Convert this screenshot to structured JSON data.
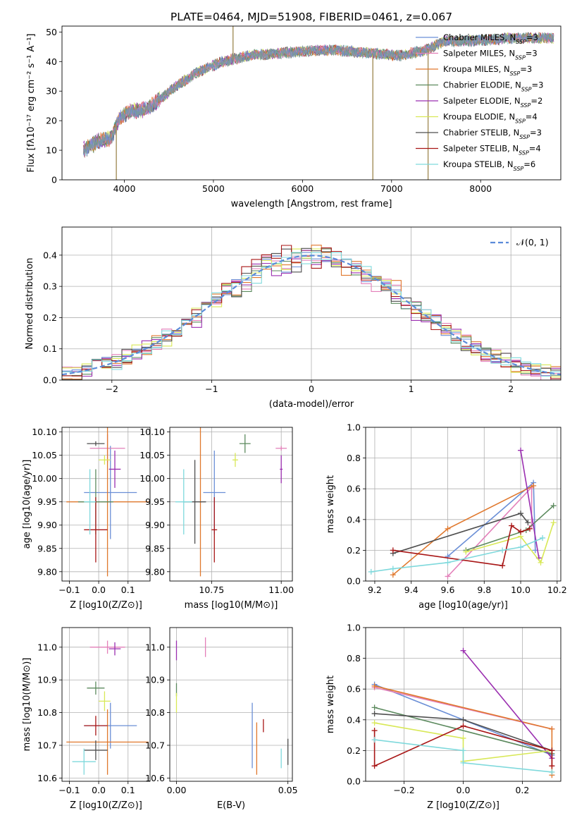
{
  "figure_title": "PLATE=0464, MJD=51908, FIBERID=0461, z=0.067",
  "palette": [
    "#6b8fd6",
    "#e37fb9",
    "#e0782d",
    "#5c8a5e",
    "#9b2fb0",
    "#d8e856",
    "#4f4f4f",
    "#a81616",
    "#7fd9dc"
  ],
  "model_labels": [
    {
      "base": "Chabrier MILES, N",
      "n": "=3"
    },
    {
      "base": "Salpeter MILES, N",
      "n": "=3"
    },
    {
      "base": "Kroupa MILES, N",
      "n": "=3"
    },
    {
      "base": "Chabrier ELODIE, N",
      "n": "=3"
    },
    {
      "base": "Salpeter ELODIE, N",
      "n": "=2"
    },
    {
      "base": "Kroupa ELODIE, N",
      "n": "=4"
    },
    {
      "base": "Chabrier STELIB, N",
      "n": "=3"
    },
    {
      "base": "Salpeter STELIB, N",
      "n": "=4"
    },
    {
      "base": "Kroupa STELIB, N",
      "n": "=6"
    }
  ],
  "ssp_subscript": "SSP",
  "chart_data": [
    {
      "id": "spectrum",
      "type": "line",
      "xlabel": "wavelength [Angstrom, rest frame]",
      "ylabel": "Flux [fλ10⁻¹⁷ erg cm⁻² s⁻¹ A⁻¹]",
      "xlim": [
        3300,
        8900
      ],
      "ylim": [
        0,
        52
      ],
      "xticks": [
        4000,
        5000,
        6000,
        7000,
        8000
      ],
      "yticks": [
        0,
        10,
        20,
        30,
        40,
        50
      ],
      "grid": false,
      "legend": "right",
      "continuum": [
        [
          3540,
          10
        ],
        [
          3700,
          13
        ],
        [
          3850,
          14
        ],
        [
          3950,
          21
        ],
        [
          4050,
          23
        ],
        [
          4250,
          24
        ],
        [
          4400,
          27
        ],
        [
          4550,
          31
        ],
        [
          4800,
          36
        ],
        [
          5100,
          40
        ],
        [
          5400,
          42
        ],
        [
          5800,
          43
        ],
        [
          6300,
          44
        ],
        [
          6700,
          43
        ],
        [
          7100,
          42
        ],
        [
          7400,
          44
        ],
        [
          7600,
          47
        ],
        [
          7900,
          47
        ],
        [
          8400,
          48
        ],
        [
          8820,
          48
        ]
      ],
      "spikes": [
        {
          "x": 3910,
          "y": 0
        },
        {
          "x": 5220,
          "y": 52
        },
        {
          "x": 6790,
          "y": 0
        },
        {
          "x": 7410,
          "y": 0
        }
      ]
    },
    {
      "id": "residuals",
      "type": "step",
      "xlabel": "(data-model)/error",
      "ylabel": "Normed distribution",
      "xlim": [
        -2.5,
        2.5
      ],
      "ylim": [
        0,
        0.49
      ],
      "xticks": [
        -2,
        -1,
        0,
        1,
        2
      ],
      "yticks": [
        0.0,
        0.1,
        0.2,
        0.3,
        0.4
      ],
      "grid": true,
      "legend": "top-right",
      "gaussian_label": "𝒩(0, 1)",
      "bin_width": 0.1
    },
    {
      "id": "age-vs-Z",
      "type": "scatter-errorbar",
      "xlabel": "Z [log10(Z/Z⊙)]",
      "ylabel": "age  [log10(age/yr)]",
      "xlim": [
        -0.125,
        0.175
      ],
      "ylim": [
        9.78,
        10.11
      ],
      "xticks": [
        -0.1,
        0.0,
        0.1
      ],
      "yticks": [
        9.8,
        9.85,
        9.9,
        9.95,
        10.0,
        10.05,
        10.1
      ],
      "grid": true,
      "points": [
        {
          "x": 0.04,
          "y": 9.97,
          "xerr": 0.09,
          "yerr": 0.1
        },
        {
          "x": 0.03,
          "y": 10.065,
          "xerr": 0.06,
          "yerr": 0.03
        },
        {
          "x": 0.03,
          "y": 9.95,
          "xerr": 0.14,
          "yerr": 0.16
        },
        {
          "x": -0.01,
          "y": 9.95,
          "xerr": 0.06,
          "yerr": 0.07
        },
        {
          "x": 0.055,
          "y": 10.02,
          "xerr": 0.02,
          "yerr": 0.04
        },
        {
          "x": 0.02,
          "y": 10.04,
          "xerr": 0.02,
          "yerr": 0.01
        },
        {
          "x": -0.01,
          "y": 10.075,
          "xerr": 0.03,
          "yerr": 0.005
        },
        {
          "x": -0.01,
          "y": 9.89,
          "xerr": 0.04,
          "yerr": 0.07
        },
        {
          "x": -0.03,
          "y": 9.95,
          "xerr": 0.02,
          "yerr": 0.07
        }
      ]
    },
    {
      "id": "age-vs-mass",
      "type": "scatter-errorbar",
      "xlabel": "mass [log10(M/M⊙)]",
      "ylabel": "",
      "xlim": [
        10.6,
        11.04
      ],
      "ylim": [
        9.78,
        10.11
      ],
      "xticks": [
        10.75,
        11.0
      ],
      "yticks": [
        9.8,
        9.85,
        9.9,
        9.95,
        10.0,
        10.05,
        10.1
      ],
      "grid": true,
      "points": [
        {
          "x": 10.76,
          "y": 9.97,
          "xerr": 0.04,
          "yerr": 0.09
        },
        {
          "x": 11.0,
          "y": 10.065,
          "xerr": 0.02,
          "yerr": 0.005
        },
        {
          "x": 10.71,
          "y": 9.95,
          "xerr": 0.005,
          "yerr": 0.16
        },
        {
          "x": 10.87,
          "y": 10.075,
          "xerr": 0.02,
          "yerr": 0.02
        },
        {
          "x": 11.0,
          "y": 10.02,
          "xerr": 0.005,
          "yerr": 0.03
        },
        {
          "x": 10.835,
          "y": 10.04,
          "xerr": 0.01,
          "yerr": 0.015
        },
        {
          "x": 10.69,
          "y": 9.95,
          "xerr": 0.04,
          "yerr": 0.09
        },
        {
          "x": 10.76,
          "y": 9.89,
          "xerr": 0.01,
          "yerr": 0.07
        },
        {
          "x": 10.65,
          "y": 9.95,
          "xerr": 0.03,
          "yerr": 0.07
        }
      ]
    },
    {
      "id": "weight-vs-age",
      "type": "line",
      "xlabel": "age  [log10(age/yr)]",
      "ylabel": "mass weight",
      "xlim": [
        9.15,
        10.22
      ],
      "ylim": [
        0,
        1.0
      ],
      "xticks": [
        9.2,
        9.4,
        9.6,
        9.8,
        10.0,
        10.2
      ],
      "yticks": [
        0.0,
        0.2,
        0.4,
        0.6,
        0.8,
        1.0
      ],
      "grid": true,
      "series": [
        {
          "values": [
            [
              9.6,
              0.16
            ],
            [
              10.07,
              0.64
            ],
            [
              10.08,
              0.2
            ]
          ]
        },
        {
          "values": [
            [
              9.6,
              0.03
            ],
            [
              10.06,
              0.61
            ],
            [
              10.06,
              0.36
            ]
          ]
        },
        {
          "values": [
            [
              9.3,
              0.04
            ],
            [
              9.6,
              0.34
            ],
            [
              10.07,
              0.62
            ]
          ]
        },
        {
          "values": [
            [
              9.7,
              0.2
            ],
            [
              10.03,
              0.33
            ],
            [
              10.18,
              0.49
            ]
          ]
        },
        {
          "values": [
            [
              10.0,
              0.85
            ],
            [
              10.1,
              0.15
            ]
          ]
        },
        {
          "values": [
            [
              9.7,
              0.19
            ],
            [
              10.0,
              0.29
            ],
            [
              10.11,
              0.12
            ],
            [
              10.18,
              0.38
            ]
          ]
        },
        {
          "values": [
            [
              9.3,
              0.18
            ],
            [
              10.0,
              0.44
            ],
            [
              10.04,
              0.38
            ]
          ]
        },
        {
          "values": [
            [
              9.3,
              0.2
            ],
            [
              9.9,
              0.1
            ],
            [
              9.95,
              0.36
            ],
            [
              10.0,
              0.32
            ],
            [
              10.05,
              0.34
            ]
          ]
        },
        {
          "values": [
            [
              9.18,
              0.06
            ],
            [
              9.3,
              0.08
            ],
            [
              9.6,
              0.12
            ],
            [
              9.9,
              0.2
            ],
            [
              10.0,
              0.22
            ],
            [
              10.12,
              0.28
            ]
          ]
        }
      ]
    },
    {
      "id": "mass-vs-Z",
      "type": "scatter-errorbar",
      "xlabel": "Z [log10(Z/Z⊙)]",
      "ylabel": "mass [log10(M/M⊙)]",
      "xlim": [
        -0.125,
        0.175
      ],
      "ylim": [
        10.59,
        11.06
      ],
      "xticks": [
        -0.1,
        0.0,
        0.1
      ],
      "yticks": [
        10.6,
        10.7,
        10.8,
        10.9,
        11.0
      ],
      "grid": true,
      "points": [
        {
          "x": 0.04,
          "y": 10.76,
          "xerr": 0.09,
          "yerr": 0.07
        },
        {
          "x": 0.03,
          "y": 11.0,
          "xerr": 0.06,
          "yerr": 0.02
        },
        {
          "x": 0.03,
          "y": 10.71,
          "xerr": 0.14,
          "yerr": 0.1
        },
        {
          "x": -0.01,
          "y": 10.875,
          "xerr": 0.03,
          "yerr": 0.02
        },
        {
          "x": 0.055,
          "y": 10.995,
          "xerr": 0.02,
          "yerr": 0.02
        },
        {
          "x": 0.02,
          "y": 10.835,
          "xerr": 0.02,
          "yerr": 0.03
        },
        {
          "x": -0.01,
          "y": 10.685,
          "xerr": 0.04,
          "yerr": 0.03
        },
        {
          "x": -0.01,
          "y": 10.76,
          "xerr": 0.04,
          "yerr": 0.03
        },
        {
          "x": -0.05,
          "y": 10.65,
          "xerr": 0.04,
          "yerr": 0.04
        }
      ]
    },
    {
      "id": "mass-vs-EBV",
      "type": "scatter-errorbar",
      "xlabel": "E(B-V)",
      "ylabel": "",
      "xlim": [
        -0.003,
        0.052
      ],
      "ylim": [
        10.59,
        11.06
      ],
      "xticks": [
        0.0,
        0.05
      ],
      "yticks": [
        10.6,
        10.7,
        10.8,
        10.9,
        11.0
      ],
      "grid": true,
      "points": [
        {
          "x": 0.034,
          "y": 10.73,
          "xerr": 0.0,
          "yerr": 0.1
        },
        {
          "x": 0.013,
          "y": 11.0,
          "xerr": 0.0,
          "yerr": 0.03
        },
        {
          "x": 0.036,
          "y": 10.69,
          "xerr": 0.0,
          "yerr": 0.08
        },
        {
          "x": 0.0,
          "y": 10.87,
          "xerr": 0.0,
          "yerr": 0.02
        },
        {
          "x": 0.0,
          "y": 10.99,
          "xerr": 0.0,
          "yerr": 0.03
        },
        {
          "x": 0.0,
          "y": 10.83,
          "xerr": 0.0,
          "yerr": 0.03
        },
        {
          "x": 0.05,
          "y": 10.68,
          "xerr": 0.0,
          "yerr": 0.04
        },
        {
          "x": 0.039,
          "y": 10.76,
          "xerr": 0.0,
          "yerr": 0.02
        },
        {
          "x": 0.047,
          "y": 10.66,
          "xerr": 0.0,
          "yerr": 0.03
        }
      ]
    },
    {
      "id": "weight-vs-Z",
      "type": "line",
      "xlabel": "Z [log10(Z/Z⊙)]",
      "ylabel": "mass weight",
      "xlim": [
        -0.33,
        0.33
      ],
      "ylim": [
        0,
        1.0
      ],
      "xticks": [
        -0.2,
        0.0,
        0.2
      ],
      "yticks": [
        0.0,
        0.2,
        0.4,
        0.6,
        0.8,
        1.0
      ],
      "grid": true,
      "series": [
        {
          "values": [
            [
              -0.3,
              0.63
            ],
            [
              0.3,
              0.17
            ]
          ]
        },
        {
          "values": [
            [
              -0.3,
              0.61
            ],
            [
              0.3,
              0.34
            ]
          ]
        },
        {
          "values": [
            [
              -0.3,
              0.62
            ],
            [
              0.3,
              0.34
            ],
            [
              0.3,
              0.04
            ]
          ]
        },
        {
          "values": [
            [
              -0.3,
              0.48
            ],
            [
              0.3,
              0.18
            ]
          ]
        },
        {
          "values": [
            [
              0.0,
              0.85
            ],
            [
              0.3,
              0.15
            ]
          ]
        },
        {
          "values": [
            [
              -0.3,
              0.38
            ],
            [
              0.0,
              0.28
            ],
            [
              0.0,
              0.13
            ],
            [
              0.3,
              0.2
            ]
          ]
        },
        {
          "values": [
            [
              -0.3,
              0.44
            ],
            [
              0.0,
              0.4
            ],
            [
              0.3,
              0.2
            ]
          ]
        },
        {
          "values": [
            [
              -0.3,
              0.33
            ],
            [
              -0.3,
              0.1
            ],
            [
              0.0,
              0.36
            ],
            [
              0.3,
              0.2
            ],
            [
              0.3,
              0.1
            ]
          ]
        },
        {
          "values": [
            [
              -0.3,
              0.27
            ],
            [
              0.0,
              0.2
            ],
            [
              0.0,
              0.12
            ],
            [
              0.3,
              0.06
            ]
          ]
        }
      ]
    }
  ]
}
